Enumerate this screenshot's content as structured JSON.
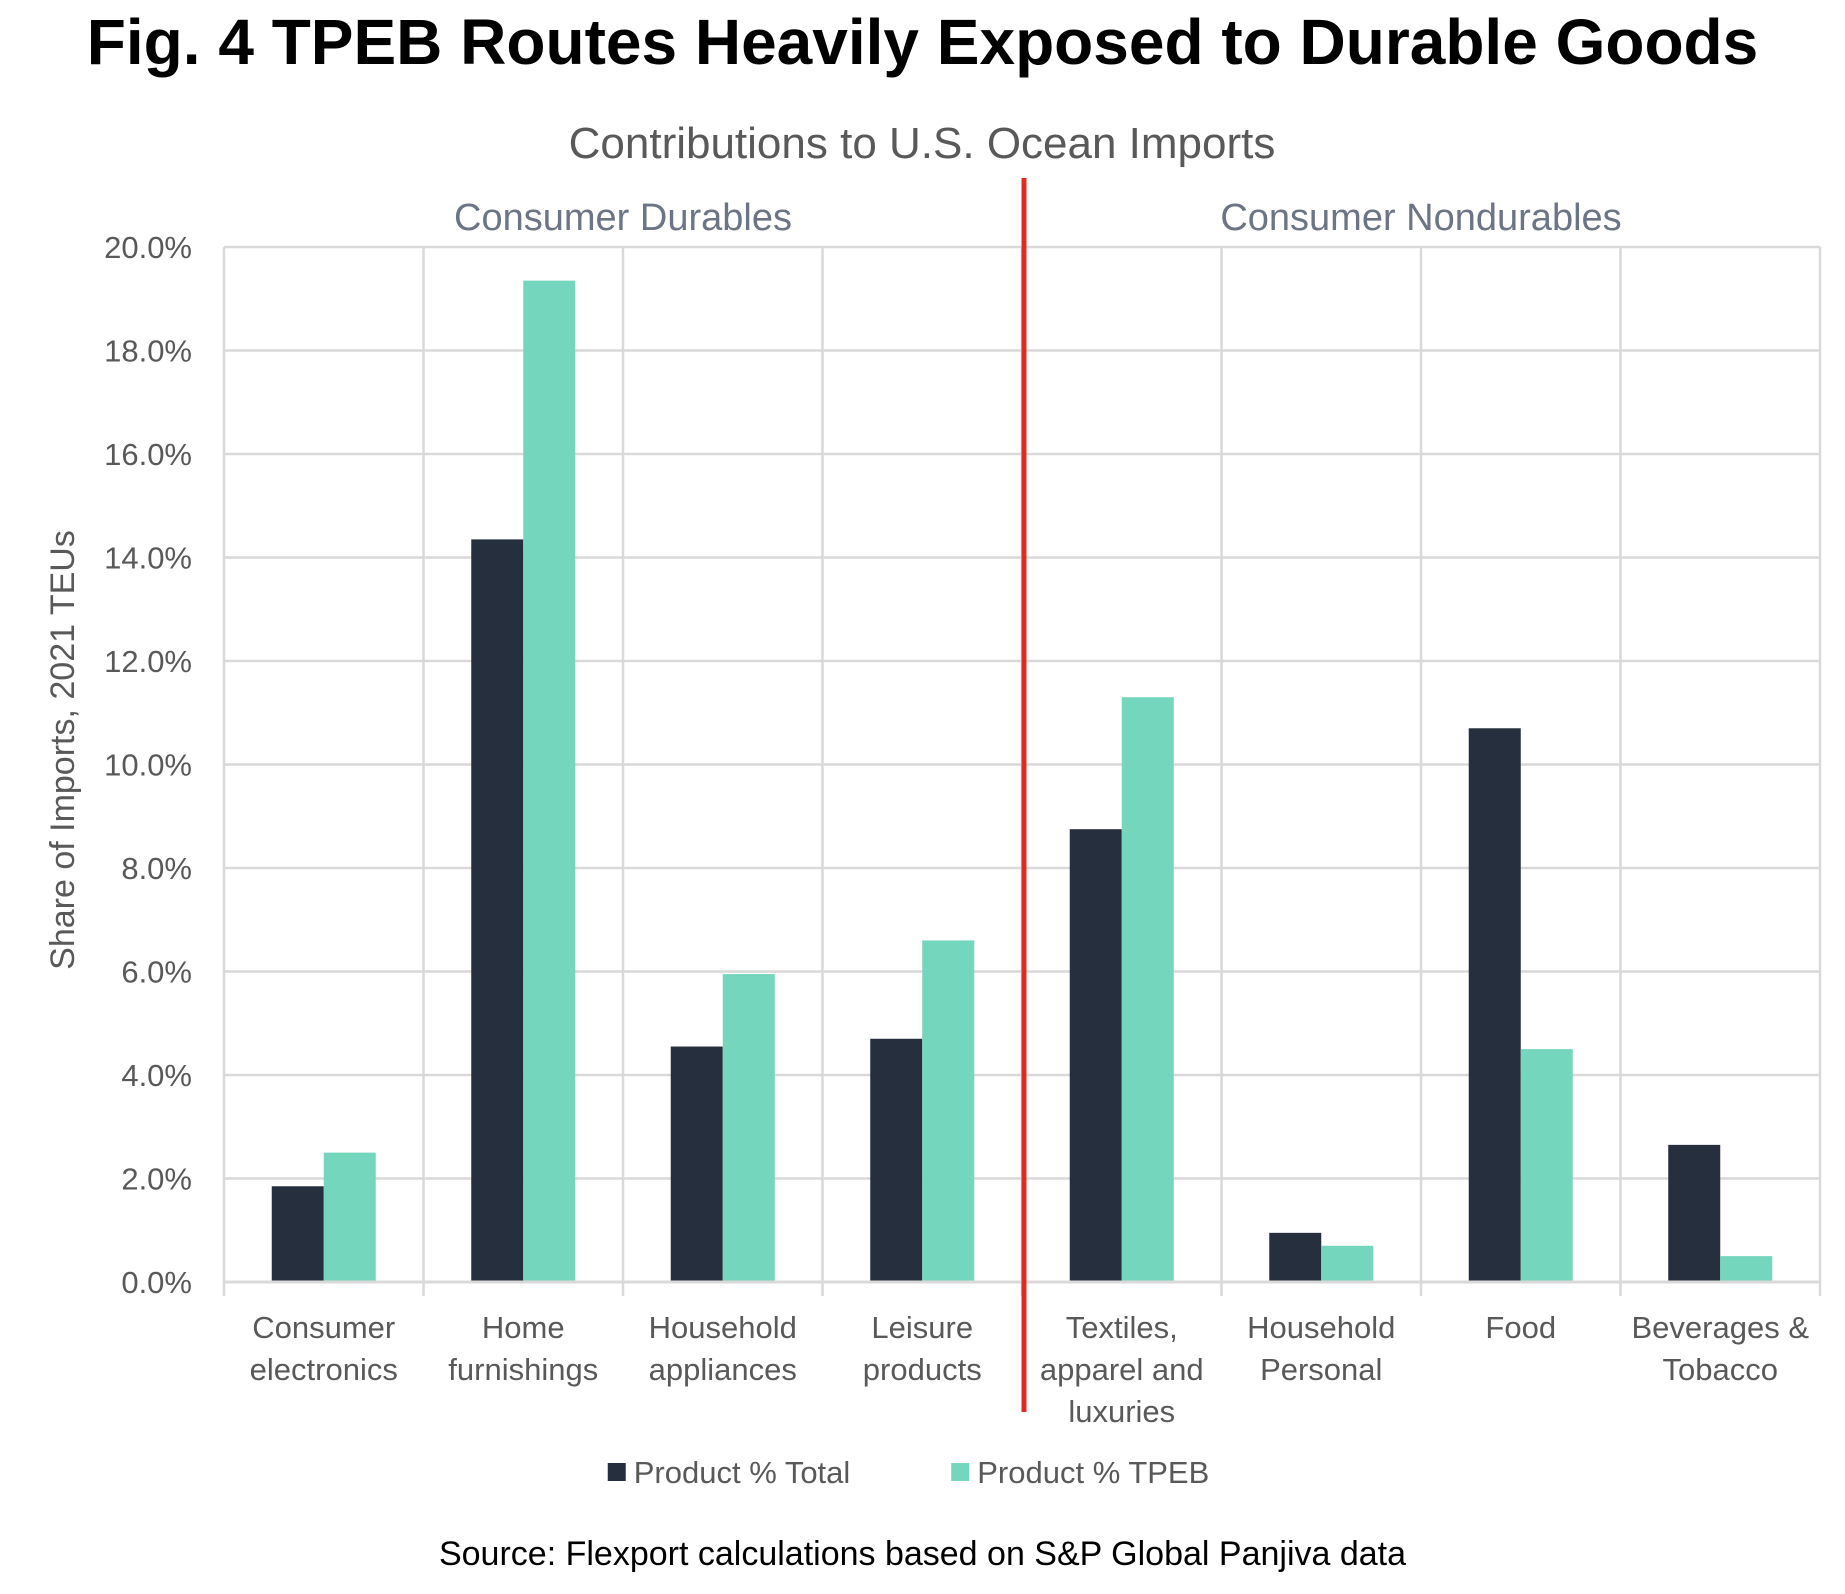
{
  "figure_title": "Fig. 4 TPEB Routes Heavily Exposed to Durable Goods",
  "source_note": "Source: Flexport calculations based on S&P Global Panjiva data",
  "colors": {
    "total": "#252f3d",
    "tpeb": "#74d6bc",
    "divider": "#e02b20",
    "grid": "#d9d9d9",
    "text": "#595959",
    "group_label": "#6b7586"
  },
  "chart_data": {
    "type": "bar",
    "title": "Contributions to U.S. Ocean Imports",
    "ylabel": "Share of Imports, 2021 TEUs",
    "xlabel": "",
    "ylim": [
      0,
      20
    ],
    "y_ticks": [
      "0.0%",
      "2.0%",
      "4.0%",
      "6.0%",
      "8.0%",
      "10.0%",
      "12.0%",
      "14.0%",
      "16.0%",
      "18.0%",
      "20.0%"
    ],
    "grid": true,
    "legend_position": "bottom",
    "groups": [
      {
        "label": "Consumer Durables",
        "categories": [
          0,
          1,
          2,
          3
        ]
      },
      {
        "label": "Consumer Nondurables",
        "categories": [
          4,
          5,
          6,
          7
        ]
      }
    ],
    "categories": [
      [
        "Consumer",
        "electronics"
      ],
      [
        "Home",
        "furnishings"
      ],
      [
        "Household",
        "appliances"
      ],
      [
        "Leisure",
        "products"
      ],
      [
        "Textiles,",
        "apparel and",
        "luxuries"
      ],
      [
        "Household",
        "Personal"
      ],
      [
        "Food"
      ],
      [
        "Beverages &",
        "Tobacco"
      ]
    ],
    "series": [
      {
        "name": "Product % Total",
        "values": [
          1.85,
          14.35,
          4.55,
          4.7,
          8.75,
          0.95,
          10.7,
          2.65
        ]
      },
      {
        "name": "Product % TPEB",
        "values": [
          2.5,
          19.35,
          5.95,
          6.6,
          11.3,
          0.7,
          4.5,
          0.5
        ]
      }
    ]
  }
}
